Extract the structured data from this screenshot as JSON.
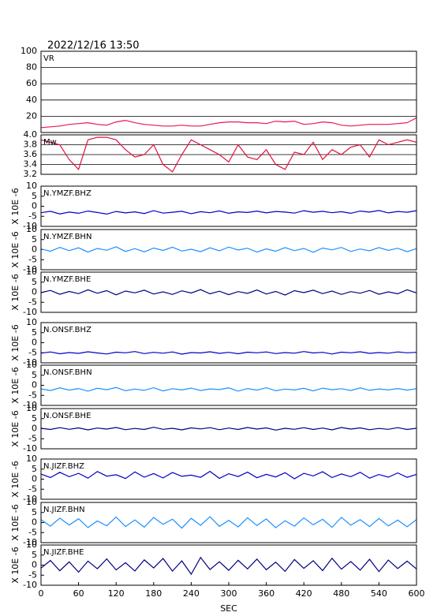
{
  "chart_data": [
    {
      "type": "line",
      "title": "2022/12/16 13:50",
      "label": "VR",
      "xlim": [
        0,
        600
      ],
      "ylim": [
        0,
        100
      ],
      "yticks": [
        20,
        40,
        60,
        80,
        100
      ],
      "grid": true,
      "color": "#e8194f",
      "x": [
        0,
        15,
        30,
        45,
        60,
        75,
        90,
        105,
        120,
        135,
        150,
        165,
        180,
        195,
        210,
        225,
        240,
        255,
        270,
        285,
        300,
        315,
        330,
        345,
        360,
        375,
        390,
        405,
        420,
        435,
        450,
        465,
        480,
        495,
        510,
        525,
        540,
        555,
        570,
        585,
        600
      ],
      "values": [
        6,
        7,
        8,
        10,
        11,
        12,
        10,
        9,
        13,
        15,
        12,
        10,
        9,
        8,
        8,
        9,
        8,
        8,
        10,
        12,
        13,
        13,
        12,
        12,
        11,
        14,
        13,
        14,
        10,
        11,
        13,
        12,
        9,
        8,
        9,
        10,
        10,
        10,
        11,
        12,
        18
      ]
    },
    {
      "type": "line",
      "label": "Mw",
      "xlim": [
        0,
        600
      ],
      "ylim": [
        3.2,
        4.0
      ],
      "yticks": [
        3.2,
        3.4,
        3.6,
        3.8,
        {
          "value": 4,
          "label": "4.0"
        }
      ],
      "grid": true,
      "color": "#e0103c",
      "x": [
        0,
        15,
        30,
        45,
        60,
        75,
        90,
        105,
        120,
        135,
        150,
        165,
        180,
        195,
        210,
        225,
        240,
        255,
        270,
        285,
        300,
        315,
        330,
        345,
        360,
        375,
        390,
        405,
        420,
        435,
        450,
        465,
        480,
        495,
        510,
        525,
        540,
        555,
        570,
        585,
        600
      ],
      "values": [
        3.9,
        3.85,
        3.8,
        3.5,
        3.3,
        3.9,
        3.95,
        3.95,
        3.9,
        3.7,
        3.55,
        3.6,
        3.8,
        3.4,
        3.25,
        3.6,
        3.9,
        3.8,
        3.7,
        3.6,
        3.45,
        3.8,
        3.55,
        3.5,
        3.7,
        3.4,
        3.3,
        3.65,
        3.6,
        3.85,
        3.5,
        3.7,
        3.6,
        3.75,
        3.8,
        3.55,
        3.9,
        3.8,
        3.85,
        3.9,
        3.85
      ]
    },
    {
      "type": "line",
      "label": "N.YMZF.BHZ",
      "ylabel": "X 10E -6",
      "xlim": [
        0,
        600
      ],
      "ylim": [
        -10,
        10
      ],
      "yticks": [
        -10,
        -5,
        0,
        5,
        10
      ],
      "color": "#0000c8",
      "x": [
        0,
        15,
        30,
        45,
        60,
        75,
        90,
        105,
        120,
        135,
        150,
        165,
        180,
        195,
        210,
        225,
        240,
        255,
        270,
        285,
        300,
        315,
        330,
        345,
        360,
        375,
        390,
        405,
        420,
        435,
        450,
        465,
        480,
        495,
        510,
        525,
        540,
        555,
        570,
        585,
        600
      ],
      "values": [
        -3.2,
        -2.5,
        -3.8,
        -2.9,
        -3.5,
        -2.4,
        -3.1,
        -3.9,
        -2.6,
        -3.3,
        -2.8,
        -3.6,
        -2.2,
        -3.4,
        -3.0,
        -2.5,
        -3.7,
        -2.7,
        -3.2,
        -2.3,
        -3.5,
        -2.8,
        -3.1,
        -2.4,
        -3.3,
        -2.6,
        -2.9,
        -3.4,
        -2.2,
        -3.0,
        -2.5,
        -3.2,
        -2.7,
        -3.5,
        -2.4,
        -2.9,
        -2.1,
        -3.3,
        -2.6,
        -3.0,
        -2.2
      ]
    },
    {
      "type": "line",
      "label": "N.YMZF.BHN",
      "ylabel": "X 10E -6",
      "xlim": [
        0,
        600
      ],
      "ylim": [
        -10,
        10
      ],
      "yticks": [
        -10,
        -5,
        0,
        5,
        10
      ],
      "color": "#1e90ff",
      "x": [
        0,
        15,
        30,
        45,
        60,
        75,
        90,
        105,
        120,
        135,
        150,
        165,
        180,
        195,
        210,
        225,
        240,
        255,
        270,
        285,
        300,
        315,
        330,
        345,
        360,
        375,
        390,
        405,
        420,
        435,
        450,
        465,
        480,
        495,
        510,
        525,
        540,
        555,
        570,
        585,
        600
      ],
      "values": [
        0.3,
        -0.8,
        1.1,
        -0.5,
        0.9,
        -1.2,
        0.6,
        -0.3,
        1.4,
        -0.9,
        0.5,
        -1.1,
        0.8,
        -0.4,
        1.2,
        -0.7,
        0.2,
        -1.0,
        0.9,
        -0.6,
        1.3,
        -0.2,
        0.7,
        -1.2,
        0.4,
        -0.8,
        1.0,
        -0.5,
        0.6,
        -1.3,
        0.8,
        -0.1,
        1.1,
        -0.9,
        0.3,
        -0.6,
        1.0,
        -0.4,
        0.7,
        -1.0,
        0.5
      ]
    },
    {
      "type": "line",
      "label": "N.YMZF.BHE",
      "ylabel": "X 10E -6",
      "xlim": [
        0,
        600
      ],
      "ylim": [
        -10,
        10
      ],
      "yticks": [
        -10,
        -5,
        0,
        5,
        10
      ],
      "color": "#000080",
      "x": [
        0,
        15,
        30,
        45,
        60,
        75,
        90,
        105,
        120,
        135,
        150,
        165,
        180,
        195,
        210,
        225,
        240,
        255,
        270,
        285,
        300,
        315,
        330,
        345,
        360,
        375,
        390,
        405,
        420,
        435,
        450,
        465,
        480,
        495,
        510,
        525,
        540,
        555,
        570,
        585,
        600
      ],
      "values": [
        -0.2,
        0.9,
        -1.0,
        0.4,
        -0.7,
        1.2,
        -0.5,
        0.8,
        -1.3,
        0.6,
        -0.3,
        1.0,
        -0.9,
        0.2,
        -1.1,
        0.7,
        -0.4,
        1.3,
        -0.8,
        0.5,
        -1.2,
        0.3,
        -0.6,
        1.1,
        -0.9,
        0.4,
        -1.4,
        0.8,
        -0.2,
        1.0,
        -0.7,
        0.6,
        -1.1,
        0.3,
        -0.5,
        0.9,
        -1.0,
        0.2,
        -0.8,
        1.2,
        -0.3
      ]
    },
    {
      "type": "line",
      "label": "N.ONSF.BHZ",
      "ylabel": "X 10E -6",
      "xlim": [
        0,
        600
      ],
      "ylim": [
        -10,
        10
      ],
      "yticks": [
        -10,
        -5,
        0,
        5,
        10
      ],
      "color": "#0000c8",
      "x": [
        0,
        15,
        30,
        45,
        60,
        75,
        90,
        105,
        120,
        135,
        150,
        165,
        180,
        195,
        210,
        225,
        240,
        255,
        270,
        285,
        300,
        315,
        330,
        345,
        360,
        375,
        390,
        405,
        420,
        435,
        450,
        465,
        480,
        495,
        510,
        525,
        540,
        555,
        570,
        585,
        600
      ],
      "values": [
        -5.2,
        -4.6,
        -5.5,
        -4.9,
        -5.3,
        -4.5,
        -5.1,
        -5.6,
        -4.7,
        -5.0,
        -4.4,
        -5.4,
        -4.8,
        -5.2,
        -4.6,
        -5.7,
        -4.9,
        -5.1,
        -4.5,
        -5.3,
        -4.8,
        -5.5,
        -4.7,
        -5.0,
        -4.6,
        -5.4,
        -4.9,
        -5.2,
        -4.4,
        -5.1,
        -4.8,
        -5.6,
        -4.7,
        -5.0,
        -4.5,
        -5.3,
        -4.9,
        -5.2,
        -4.6,
        -5.0,
        -4.8
      ]
    },
    {
      "type": "line",
      "label": "N.ONSF.BHN",
      "ylabel": "X 10E -6",
      "xlim": [
        0,
        600
      ],
      "ylim": [
        -10,
        10
      ],
      "yticks": [
        -10,
        -5,
        0,
        5,
        10
      ],
      "color": "#1e90ff",
      "x": [
        0,
        15,
        30,
        45,
        60,
        75,
        90,
        105,
        120,
        135,
        150,
        165,
        180,
        195,
        210,
        225,
        240,
        255,
        270,
        285,
        300,
        315,
        330,
        345,
        360,
        375,
        390,
        405,
        420,
        435,
        450,
        465,
        480,
        495,
        510,
        525,
        540,
        555,
        570,
        585,
        600
      ],
      "values": [
        -1.8,
        -2.6,
        -1.3,
        -2.4,
        -1.6,
        -2.9,
        -1.5,
        -2.2,
        -1.1,
        -2.7,
        -1.9,
        -2.5,
        -1.2,
        -2.8,
        -1.7,
        -2.3,
        -1.4,
        -2.6,
        -1.8,
        -2.1,
        -1.3,
        -2.9,
        -1.6,
        -2.4,
        -1.2,
        -2.7,
        -1.9,
        -2.3,
        -1.5,
        -2.8,
        -1.4,
        -2.2,
        -1.7,
        -2.6,
        -1.3,
        -2.5,
        -1.8,
        -2.3,
        -1.6,
        -2.4,
        -1.7
      ]
    },
    {
      "type": "line",
      "label": "N.ONSF.BHE",
      "ylabel": "X 10E -6",
      "xlim": [
        0,
        600
      ],
      "ylim": [
        -10,
        10
      ],
      "yticks": [
        -10,
        -5,
        0,
        5,
        10
      ],
      "color": "#000080",
      "x": [
        0,
        15,
        30,
        45,
        60,
        75,
        90,
        105,
        120,
        135,
        150,
        165,
        180,
        195,
        210,
        225,
        240,
        255,
        270,
        285,
        300,
        315,
        330,
        345,
        360,
        375,
        390,
        405,
        420,
        435,
        450,
        465,
        480,
        495,
        510,
        525,
        540,
        555,
        570,
        585,
        600
      ],
      "values": [
        0.2,
        -0.4,
        0.5,
        -0.3,
        0.4,
        -0.6,
        0.3,
        -0.2,
        0.6,
        -0.5,
        0.1,
        -0.4,
        0.7,
        -0.3,
        0.2,
        -0.6,
        0.4,
        -0.1,
        0.5,
        -0.5,
        0.3,
        -0.4,
        0.6,
        -0.2,
        0.4,
        -0.7,
        0.2,
        -0.3,
        0.5,
        -0.4,
        0.3,
        -0.6,
        0.6,
        -0.2,
        0.4,
        -0.5,
        0.1,
        -0.3,
        0.5,
        -0.4,
        0.2
      ]
    },
    {
      "type": "line",
      "label": "N.JIZF.BHZ",
      "ylabel": "X 10E -6",
      "xlim": [
        0,
        600
      ],
      "ylim": [
        -10,
        10
      ],
      "yticks": [
        -10,
        -5,
        0,
        5,
        10
      ],
      "color": "#0000c8",
      "x": [
        0,
        15,
        30,
        45,
        60,
        75,
        90,
        105,
        120,
        135,
        150,
        165,
        180,
        195,
        210,
        225,
        240,
        255,
        270,
        285,
        300,
        315,
        330,
        345,
        360,
        375,
        390,
        405,
        420,
        435,
        450,
        465,
        480,
        495,
        510,
        525,
        540,
        555,
        570,
        585,
        600
      ],
      "values": [
        2.5,
        0.8,
        3.4,
        1.2,
        2.9,
        0.5,
        3.8,
        1.5,
        2.2,
        0.3,
        3.6,
        1.0,
        2.8,
        0.6,
        3.3,
        1.4,
        2.0,
        0.9,
        3.9,
        0.4,
        2.7,
        1.3,
        3.5,
        0.7,
        2.4,
        1.1,
        3.2,
        0.2,
        2.9,
        1.6,
        3.7,
        0.8,
        2.6,
        1.2,
        3.4,
        0.5,
        2.3,
        1.0,
        3.1,
        0.9,
        2.4
      ]
    },
    {
      "type": "line",
      "label": "N.JIZF.BHN",
      "ylabel": "X 10E -6",
      "xlim": [
        0,
        600
      ],
      "ylim": [
        -10,
        10
      ],
      "yticks": [
        -10,
        -5,
        0,
        5,
        10
      ],
      "color": "#1e90ff",
      "x": [
        0,
        15,
        30,
        45,
        60,
        75,
        90,
        105,
        120,
        135,
        150,
        165,
        180,
        195,
        210,
        225,
        240,
        255,
        270,
        285,
        300,
        315,
        330,
        345,
        360,
        375,
        390,
        405,
        420,
        435,
        450,
        465,
        480,
        495,
        510,
        525,
        540,
        555,
        570,
        585,
        600
      ],
      "values": [
        1.5,
        -1.8,
        2.2,
        -1.2,
        1.9,
        -2.5,
        0.8,
        -1.6,
        2.7,
        -2.0,
        1.3,
        -2.3,
        2.5,
        -0.9,
        1.7,
        -2.8,
        2.1,
        -1.4,
        2.9,
        -1.9,
        1.1,
        -2.2,
        2.4,
        -1.5,
        1.8,
        -2.6,
        0.9,
        -1.8,
        2.3,
        -1.1,
        1.6,
        -2.4,
        2.6,
        -1.3,
        1.4,
        -2.0,
        2.0,
        -1.7,
        1.2,
        -2.1,
        1.5
      ]
    },
    {
      "type": "line",
      "label": "N.JIZF.BHE",
      "ylabel": "X 10E -6",
      "xlabel": "SEC",
      "xlim": [
        0,
        600
      ],
      "ylim": [
        -10,
        10
      ],
      "yticks": [
        -10,
        -5,
        0,
        5,
        10
      ],
      "xticks": [
        0,
        60,
        120,
        180,
        240,
        300,
        360,
        420,
        480,
        540,
        600
      ],
      "color": "#000080",
      "x": [
        0,
        15,
        30,
        45,
        60,
        75,
        90,
        105,
        120,
        135,
        150,
        165,
        180,
        195,
        210,
        225,
        240,
        255,
        270,
        285,
        300,
        315,
        330,
        345,
        360,
        375,
        390,
        405,
        420,
        435,
        450,
        465,
        480,
        495,
        510,
        525,
        540,
        555,
        570,
        585,
        600
      ],
      "values": [
        -1.5,
        2.3,
        -2.8,
        1.6,
        -3.5,
        2.0,
        -1.8,
        3.1,
        -2.4,
        1.2,
        -2.9,
        2.6,
        -1.4,
        3.3,
        -3.0,
        2.1,
        -4.5,
        3.8,
        -2.2,
        1.7,
        -2.6,
        2.4,
        -1.9,
        3.0,
        -2.3,
        1.5,
        -3.1,
        2.8,
        -1.6,
        2.2,
        -2.7,
        3.4,
        -2.0,
        1.8,
        -2.5,
        2.9,
        -3.2,
        2.5,
        -1.7,
        2.0,
        -1.9
      ]
    }
  ]
}
